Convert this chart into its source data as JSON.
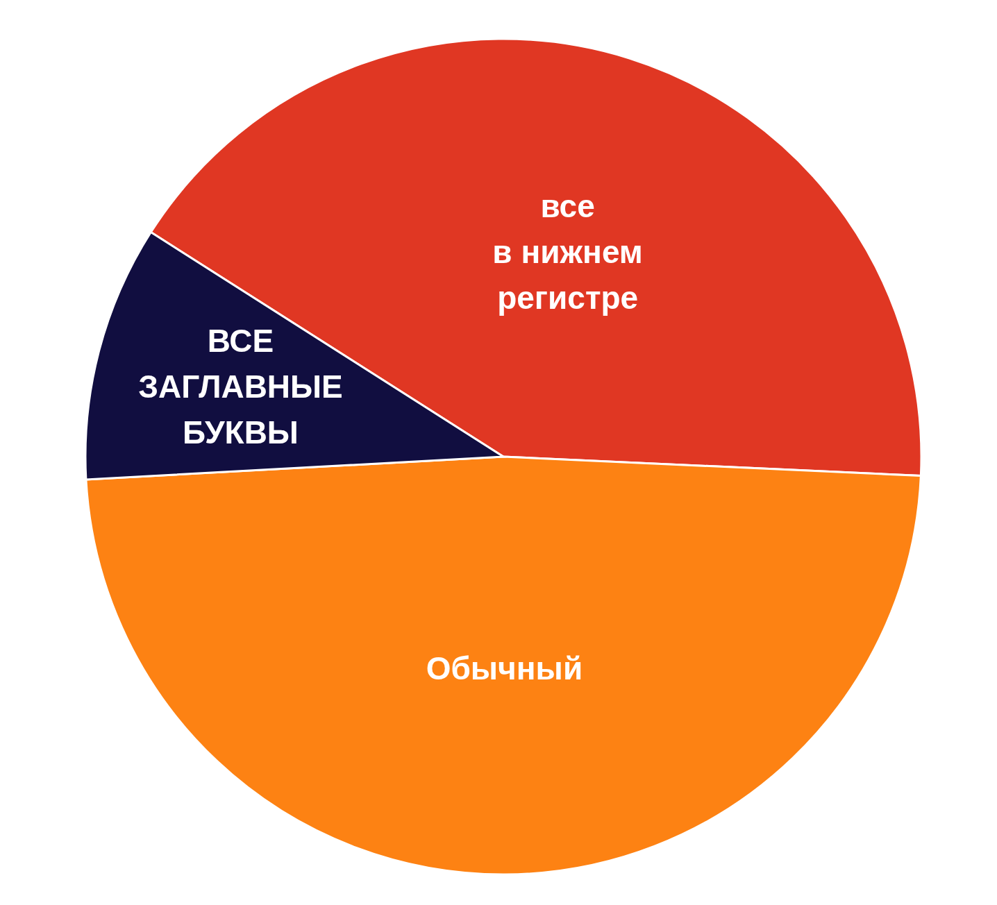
{
  "chart_data": {
    "type": "pie",
    "categories": [
      "все\nв нижнем\nрегистре",
      "Обычный",
      "ВСЕ\nЗАГЛАВНЫЕ\nБУКВЫ"
    ],
    "values": [
      41.7,
      48.4,
      9.9
    ],
    "colors": [
      "#e03723",
      "#fd8213",
      "#110e40"
    ]
  }
}
